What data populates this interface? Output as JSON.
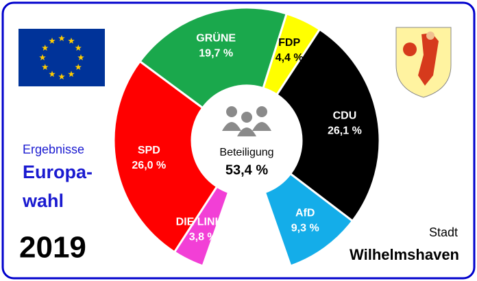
{
  "chart_data": {
    "type": "pie",
    "categories": [
      "DIE LINKE",
      "SPD",
      "GRÜNE",
      "FDP",
      "CDU",
      "AfD"
    ],
    "values": [
      3.8,
      26.0,
      19.7,
      4.4,
      26.1,
      9.3
    ],
    "value_labels": [
      "3,8 %",
      "26,0 %",
      "19,7 %",
      "4,4 %",
      "26,1 %",
      "9,3 %"
    ],
    "colors": [
      "#f23fd6",
      "#ff0000",
      "#1aa84c",
      "#ffff00",
      "#000000",
      "#14ade9"
    ],
    "label_colors": [
      "#ffffff",
      "#ffffff",
      "#ffffff",
      "#000000",
      "#ffffff",
      "#ffffff"
    ],
    "turnout": {
      "value": 53.4,
      "label": "53,4 %",
      "name": "Beteiligung"
    }
  },
  "heading": {
    "line1": "Ergebnisse",
    "line2": "Europa-",
    "line3": "wahl",
    "year": "2019"
  },
  "place": {
    "line1": "Stadt",
    "line2": "Wilhelmshaven"
  }
}
